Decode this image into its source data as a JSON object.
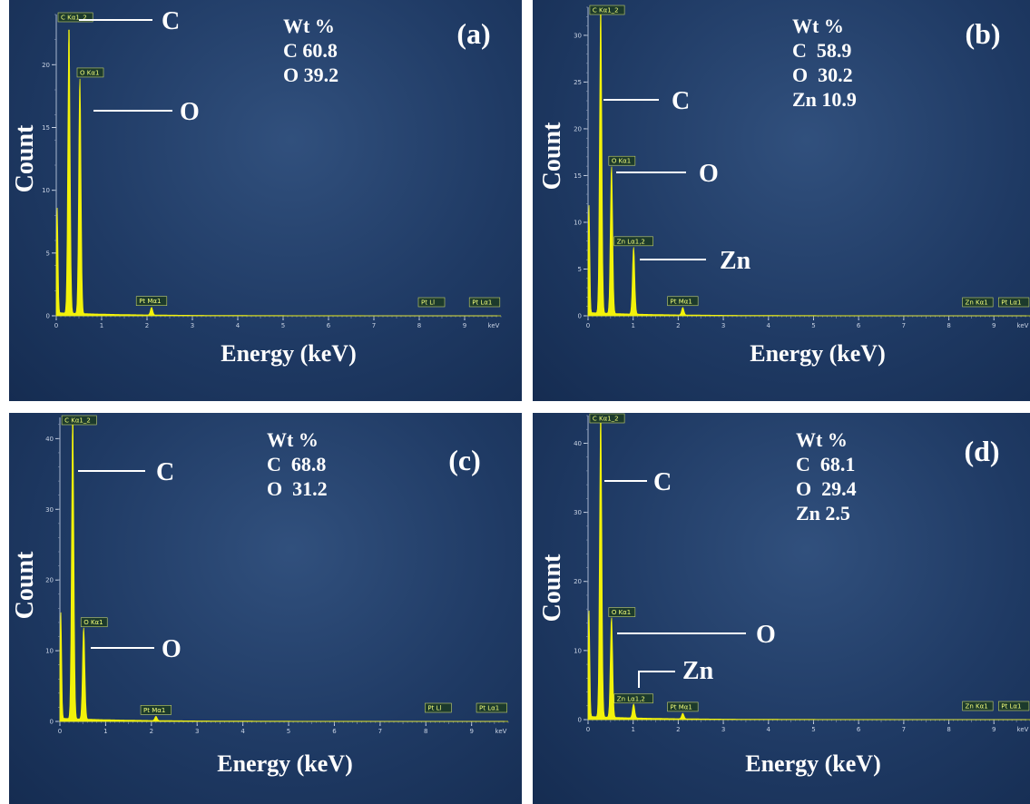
{
  "colors": {
    "spectrum": "#f2f20a",
    "accent_label": "#f4ff7a"
  },
  "chart_data": [
    {
      "type": "area",
      "panel_tag": "(a)",
      "ylabel": "Count",
      "xlabel": "Energy (keV)",
      "x_unit": "keV",
      "xlim": [
        0,
        9.8
      ],
      "ylim": [
        0,
        24
      ],
      "x_ticks": [
        "0",
        "1",
        "2",
        "3",
        "4",
        "5",
        "6",
        "7",
        "8",
        "9"
      ],
      "y_ticks": [
        "0",
        "5",
        "10",
        "15",
        "20"
      ],
      "wt_header": "Wt %",
      "composition": [
        "C 60.8",
        "O 39.2"
      ],
      "peaks": [
        {
          "label": "C Kα1_2",
          "x": 0.28,
          "y": 22.5
        },
        {
          "label": "O Kα1",
          "x": 0.52,
          "y": 18.8
        },
        {
          "label": "Pt Mα1",
          "x": 2.1,
          "y": 0.6
        },
        {
          "label": "Pt Ll",
          "x": 8.27,
          "y": 0
        },
        {
          "label": "Pt Lα1",
          "x": 9.44,
          "y": 0
        }
      ],
      "element_labels": [
        {
          "text": "C",
          "peak": 0
        },
        {
          "text": "O",
          "peak": 1
        }
      ]
    },
    {
      "type": "area",
      "panel_tag": "(b)",
      "ylabel": "Count",
      "xlabel": "Energy (keV)",
      "x_unit": "keV",
      "xlim": [
        0,
        9.8
      ],
      "ylim": [
        0,
        33
      ],
      "x_ticks": [
        "0",
        "1",
        "2",
        "3",
        "4",
        "5",
        "6",
        "7",
        "8",
        "9"
      ],
      "y_ticks": [
        "0",
        "5",
        "10",
        "15",
        "20",
        "25",
        "30"
      ],
      "wt_header": "Wt %",
      "composition": [
        "C  58.9",
        "O  30.2",
        "Zn 10.9"
      ],
      "peaks": [
        {
          "label": "C Kα1_2",
          "x": 0.28,
          "y": 32.0
        },
        {
          "label": "O Kα1",
          "x": 0.52,
          "y": 15.8
        },
        {
          "label": "Zn Lα1,2",
          "x": 1.01,
          "y": 7.2
        },
        {
          "label": "Pt Mα1",
          "x": 2.1,
          "y": 0.8
        },
        {
          "label": "Zn Kα1",
          "x": 8.64,
          "y": 0
        },
        {
          "label": "Pt Lα1",
          "x": 9.44,
          "y": 0
        }
      ],
      "element_labels": [
        {
          "text": "C",
          "peak": 0
        },
        {
          "text": "O",
          "peak": 1
        },
        {
          "text": "Zn",
          "peak": 2
        }
      ]
    },
    {
      "type": "area",
      "panel_tag": "(c)",
      "ylabel": "Count",
      "xlabel": "Energy (keV)",
      "x_unit": "keV",
      "xlim": [
        0,
        9.8
      ],
      "ylim": [
        0,
        43
      ],
      "x_ticks": [
        "0",
        "1",
        "2",
        "3",
        "4",
        "5",
        "6",
        "7",
        "8",
        "9"
      ],
      "y_ticks": [
        "0",
        "10",
        "20",
        "30",
        "40"
      ],
      "wt_header": "Wt %",
      "composition": [
        "C  68.8",
        "O  31.2"
      ],
      "peaks": [
        {
          "label": "C Kα1_2",
          "x": 0.28,
          "y": 42.0
        },
        {
          "label": "O Kα1",
          "x": 0.52,
          "y": 13.0
        },
        {
          "label": "Pt Mα1",
          "x": 2.1,
          "y": 0.6
        },
        {
          "label": "Pt Ll",
          "x": 8.27,
          "y": 0
        },
        {
          "label": "Pt Lα1",
          "x": 9.44,
          "y": 0
        }
      ],
      "element_labels": [
        {
          "text": "C",
          "peak": 0
        },
        {
          "text": "O",
          "peak": 1
        }
      ]
    },
    {
      "type": "area",
      "panel_tag": "(d)",
      "ylabel": "Count",
      "xlabel": "Energy (keV)",
      "x_unit": "keV",
      "xlim": [
        0,
        9.8
      ],
      "ylim": [
        0,
        44
      ],
      "x_ticks": [
        "0",
        "1",
        "2",
        "3",
        "4",
        "5",
        "6",
        "7",
        "8",
        "9"
      ],
      "y_ticks": [
        "0",
        "10",
        "20",
        "30",
        "40"
      ],
      "wt_header": "Wt %",
      "composition": [
        "C  68.1",
        "O  29.4",
        "Zn 2.5"
      ],
      "peaks": [
        {
          "label": "C Kα1_2",
          "x": 0.28,
          "y": 43.0
        },
        {
          "label": "O Kα1",
          "x": 0.52,
          "y": 14.5
        },
        {
          "label": "Zn Lα1,2",
          "x": 1.01,
          "y": 2.0
        },
        {
          "label": "Pt Mα1",
          "x": 2.1,
          "y": 0.8
        },
        {
          "label": "Zn Kα1",
          "x": 8.64,
          "y": 0
        },
        {
          "label": "Pt Lα1",
          "x": 9.44,
          "y": 0
        }
      ],
      "element_labels": [
        {
          "text": "C",
          "peak": 0
        },
        {
          "text": "O",
          "peak": 1
        },
        {
          "text": "Zn",
          "peak": 2
        }
      ]
    }
  ]
}
